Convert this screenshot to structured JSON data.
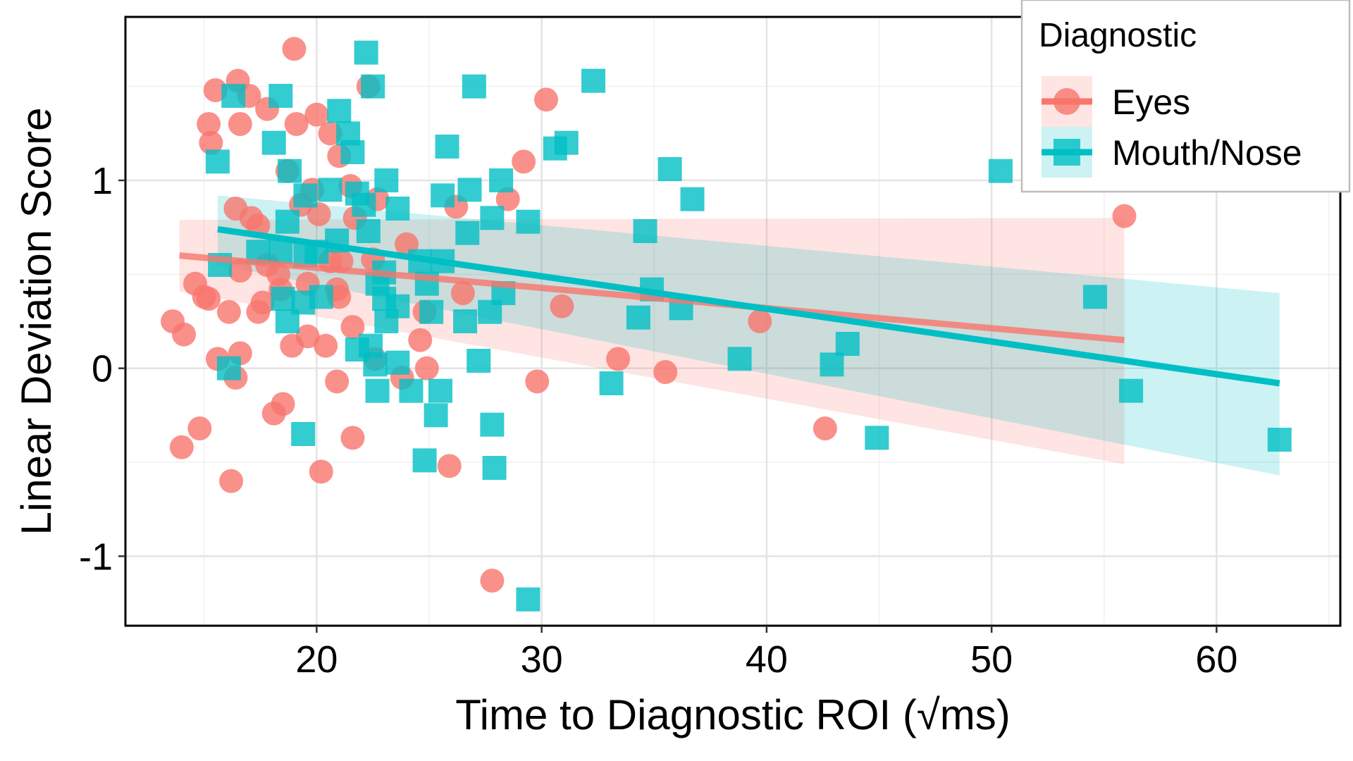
{
  "chart_data": {
    "type": "scatter",
    "xlabel": "Time to Diagnostic ROI (√ms)",
    "ylabel": "Linear Deviation Score",
    "xlim": [
      11.5,
      65.5
    ],
    "ylim": [
      -1.37,
      1.87
    ],
    "x_ticks": [
      20,
      30,
      40,
      50,
      60
    ],
    "x_tick_labels": [
      "20",
      "30",
      "40",
      "50",
      "60"
    ],
    "y_ticks": [
      -1,
      0,
      1
    ],
    "y_tick_labels": [
      "-1",
      "0",
      "1"
    ],
    "grid": true,
    "legend": {
      "title": "Diagnostic",
      "position": "top-right"
    },
    "series": [
      {
        "name": "Eyes",
        "color": "#F8766D",
        "marker": "circle",
        "trend": {
          "x": [
            13.9,
            55.9
          ],
          "y": [
            0.6,
            0.15
          ]
        },
        "band": {
          "x": [
            13.9,
            55.9
          ],
          "lower": [
            0.41,
            -0.51
          ],
          "upper": [
            0.79,
            0.8
          ]
        },
        "points": [
          [
            19.0,
            1.7
          ],
          [
            16.5,
            1.53
          ],
          [
            15.5,
            1.48
          ],
          [
            22.3,
            1.5
          ],
          [
            17.0,
            1.45
          ],
          [
            17.8,
            1.38
          ],
          [
            15.2,
            1.3
          ],
          [
            16.6,
            1.3
          ],
          [
            19.1,
            1.3
          ],
          [
            20.0,
            1.35
          ],
          [
            15.3,
            1.2
          ],
          [
            20.6,
            1.25
          ],
          [
            21.0,
            1.13
          ],
          [
            18.7,
            1.05
          ],
          [
            19.8,
            0.95
          ],
          [
            21.5,
            0.97
          ],
          [
            22.7,
            0.9
          ],
          [
            16.4,
            0.85
          ],
          [
            17.1,
            0.8
          ],
          [
            17.4,
            0.76
          ],
          [
            19.3,
            0.87
          ],
          [
            20.1,
            0.82
          ],
          [
            21.7,
            0.8
          ],
          [
            17.8,
            0.55
          ],
          [
            18.3,
            0.5
          ],
          [
            16.6,
            0.52
          ],
          [
            20.6,
            0.57
          ],
          [
            21.1,
            0.57
          ],
          [
            22.5,
            0.58
          ],
          [
            24.0,
            0.66
          ],
          [
            14.6,
            0.45
          ],
          [
            15.0,
            0.38
          ],
          [
            15.2,
            0.37
          ],
          [
            18.4,
            0.42
          ],
          [
            19.6,
            0.45
          ],
          [
            20.9,
            0.42
          ],
          [
            21.0,
            0.38
          ],
          [
            17.4,
            0.3
          ],
          [
            16.1,
            0.3
          ],
          [
            17.6,
            0.35
          ],
          [
            24.8,
            0.3
          ],
          [
            26.5,
            0.4
          ],
          [
            30.9,
            0.33
          ],
          [
            13.6,
            0.25
          ],
          [
            14.1,
            0.18
          ],
          [
            21.6,
            0.22
          ],
          [
            19.6,
            0.17
          ],
          [
            20.4,
            0.12
          ],
          [
            24.6,
            0.15
          ],
          [
            18.9,
            0.12
          ],
          [
            15.6,
            0.05
          ],
          [
            16.6,
            0.08
          ],
          [
            22.6,
            0.05
          ],
          [
            24.9,
            0.0
          ],
          [
            16.4,
            -0.05
          ],
          [
            20.9,
            -0.07
          ],
          [
            23.8,
            -0.05
          ],
          [
            29.8,
            -0.07
          ],
          [
            18.5,
            -0.19
          ],
          [
            18.1,
            -0.24
          ],
          [
            14.8,
            -0.32
          ],
          [
            21.6,
            -0.37
          ],
          [
            14.0,
            -0.42
          ],
          [
            20.2,
            -0.55
          ],
          [
            25.9,
            -0.52
          ],
          [
            16.2,
            -0.6
          ],
          [
            27.8,
            -1.13
          ],
          [
            30.2,
            1.43
          ],
          [
            29.2,
            1.1
          ],
          [
            26.2,
            0.86
          ],
          [
            28.5,
            0.9
          ],
          [
            33.4,
            0.05
          ],
          [
            35.5,
            -0.02
          ],
          [
            39.7,
            0.25
          ],
          [
            42.6,
            -0.32
          ],
          [
            55.9,
            0.81
          ]
        ]
      },
      {
        "name": "Mouth/Nose",
        "color": "#00BFC4",
        "marker": "square",
        "trend": {
          "x": [
            15.6,
            62.8
          ],
          "y": [
            0.74,
            -0.08
          ]
        },
        "band": {
          "x": [
            15.6,
            62.8
          ],
          "lower": [
            0.55,
            -0.57
          ],
          "upper": [
            0.92,
            0.4
          ]
        },
        "points": [
          [
            22.2,
            1.68
          ],
          [
            32.3,
            1.53
          ],
          [
            27.0,
            1.5
          ],
          [
            22.5,
            1.5
          ],
          [
            16.3,
            1.45
          ],
          [
            18.4,
            1.45
          ],
          [
            21.0,
            1.37
          ],
          [
            21.4,
            1.25
          ],
          [
            18.1,
            1.2
          ],
          [
            21.6,
            1.15
          ],
          [
            25.8,
            1.18
          ],
          [
            30.6,
            1.17
          ],
          [
            31.1,
            1.2
          ],
          [
            15.6,
            1.1
          ],
          [
            35.7,
            1.06
          ],
          [
            18.8,
            1.05
          ],
          [
            20.6,
            0.95
          ],
          [
            19.5,
            0.92
          ],
          [
            21.8,
            0.93
          ],
          [
            23.1,
            1.0
          ],
          [
            28.2,
            1.0
          ],
          [
            26.8,
            0.95
          ],
          [
            25.6,
            0.92
          ],
          [
            36.7,
            0.9
          ],
          [
            22.1,
            0.87
          ],
          [
            23.6,
            0.85
          ],
          [
            27.8,
            0.8
          ],
          [
            29.4,
            0.78
          ],
          [
            34.6,
            0.73
          ],
          [
            26.7,
            0.72
          ],
          [
            18.7,
            0.78
          ],
          [
            22.3,
            0.73
          ],
          [
            20.9,
            0.68
          ],
          [
            20.0,
            0.62
          ],
          [
            19.5,
            0.6
          ],
          [
            18.4,
            0.62
          ],
          [
            17.4,
            0.62
          ],
          [
            15.7,
            0.55
          ],
          [
            24.6,
            0.57
          ],
          [
            25.6,
            0.57
          ],
          [
            23.0,
            0.51
          ],
          [
            22.7,
            0.45
          ],
          [
            24.9,
            0.45
          ],
          [
            28.3,
            0.4
          ],
          [
            34.9,
            0.42
          ],
          [
            18.5,
            0.37
          ],
          [
            19.4,
            0.35
          ],
          [
            20.2,
            0.38
          ],
          [
            23.0,
            0.37
          ],
          [
            23.6,
            0.33
          ],
          [
            25.1,
            0.3
          ],
          [
            27.7,
            0.3
          ],
          [
            23.1,
            0.25
          ],
          [
            26.6,
            0.25
          ],
          [
            34.3,
            0.27
          ],
          [
            36.2,
            0.32
          ],
          [
            18.7,
            0.25
          ],
          [
            16.1,
            0.0
          ],
          [
            21.8,
            0.1
          ],
          [
            22.4,
            0.12
          ],
          [
            23.6,
            0.03
          ],
          [
            22.6,
            0.02
          ],
          [
            27.2,
            0.04
          ],
          [
            24.2,
            -0.12
          ],
          [
            22.7,
            -0.12
          ],
          [
            25.5,
            -0.12
          ],
          [
            25.3,
            -0.25
          ],
          [
            27.8,
            -0.3
          ],
          [
            19.4,
            -0.35
          ],
          [
            24.8,
            -0.49
          ],
          [
            27.9,
            -0.53
          ],
          [
            29.4,
            -1.23
          ],
          [
            33.1,
            -0.08
          ],
          [
            38.8,
            0.05
          ],
          [
            42.9,
            0.02
          ],
          [
            43.6,
            0.13
          ],
          [
            44.9,
            -0.37
          ],
          [
            50.4,
            1.05
          ],
          [
            54.6,
            0.38
          ],
          [
            56.2,
            -0.12
          ],
          [
            62.8,
            -0.38
          ]
        ]
      }
    ]
  }
}
